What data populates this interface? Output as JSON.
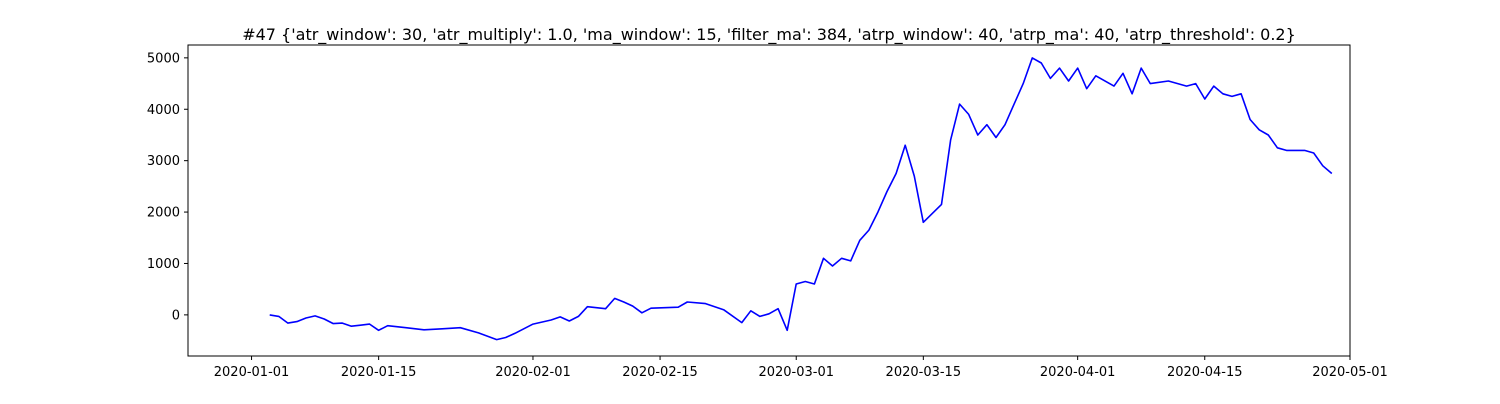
{
  "chart_data": {
    "type": "line",
    "title": "#47 {'atr_window': 30, 'atr_multiply': 1.0, 'ma_window': 15, 'filter_ma': 384, 'atrp_window': 40, 'atrp_ma': 40, 'atrp_threshold': 0.2}",
    "xlabel": "",
    "ylabel": "",
    "x_axis": {
      "type": "date",
      "range": [
        "2019-12-25",
        "2020-05-01"
      ],
      "ticks": [
        "2020-01-01",
        "2020-01-15",
        "2020-02-01",
        "2020-02-15",
        "2020-03-01",
        "2020-03-15",
        "2020-04-01",
        "2020-04-15",
        "2020-05-01"
      ]
    },
    "y_axis": {
      "range": [
        -800,
        5250
      ],
      "ticks": [
        0,
        1000,
        2000,
        3000,
        4000,
        5000
      ]
    },
    "grid": false,
    "legend": "none",
    "series": [
      {
        "color": "#0000ff",
        "points": [
          [
            "2020-01-03",
            0
          ],
          [
            "2020-01-04",
            -30
          ],
          [
            "2020-01-05",
            -160
          ],
          [
            "2020-01-06",
            -130
          ],
          [
            "2020-01-07",
            -60
          ],
          [
            "2020-01-08",
            -20
          ],
          [
            "2020-01-09",
            -80
          ],
          [
            "2020-01-10",
            -170
          ],
          [
            "2020-01-11",
            -160
          ],
          [
            "2020-01-12",
            -220
          ],
          [
            "2020-01-13",
            -200
          ],
          [
            "2020-01-14",
            -180
          ],
          [
            "2020-01-15",
            -300
          ],
          [
            "2020-01-16",
            -210
          ],
          [
            "2020-01-18",
            -250
          ],
          [
            "2020-01-20",
            -290
          ],
          [
            "2020-01-22",
            -270
          ],
          [
            "2020-01-24",
            -250
          ],
          [
            "2020-01-26",
            -350
          ],
          [
            "2020-01-28",
            -480
          ],
          [
            "2020-01-29",
            -440
          ],
          [
            "2020-01-30",
            -360
          ],
          [
            "2020-02-01",
            -180
          ],
          [
            "2020-02-03",
            -100
          ],
          [
            "2020-02-04",
            -40
          ],
          [
            "2020-02-05",
            -120
          ],
          [
            "2020-02-06",
            -30
          ],
          [
            "2020-02-07",
            160
          ],
          [
            "2020-02-09",
            120
          ],
          [
            "2020-02-10",
            320
          ],
          [
            "2020-02-11",
            250
          ],
          [
            "2020-02-12",
            170
          ],
          [
            "2020-02-13",
            40
          ],
          [
            "2020-02-14",
            130
          ],
          [
            "2020-02-17",
            150
          ],
          [
            "2020-02-18",
            250
          ],
          [
            "2020-02-20",
            220
          ],
          [
            "2020-02-22",
            100
          ],
          [
            "2020-02-24",
            -150
          ],
          [
            "2020-02-25",
            80
          ],
          [
            "2020-02-26",
            -30
          ],
          [
            "2020-02-27",
            20
          ],
          [
            "2020-02-28",
            120
          ],
          [
            "2020-02-29",
            -300
          ],
          [
            "2020-03-01",
            600
          ],
          [
            "2020-03-02",
            650
          ],
          [
            "2020-03-03",
            600
          ],
          [
            "2020-03-04",
            1100
          ],
          [
            "2020-03-05",
            950
          ],
          [
            "2020-03-06",
            1100
          ],
          [
            "2020-03-07",
            1050
          ],
          [
            "2020-03-08",
            1450
          ],
          [
            "2020-03-09",
            1650
          ],
          [
            "2020-03-10",
            2000
          ],
          [
            "2020-03-11",
            2400
          ],
          [
            "2020-03-12",
            2750
          ],
          [
            "2020-03-13",
            3300
          ],
          [
            "2020-03-14",
            2700
          ],
          [
            "2020-03-15",
            1800
          ],
          [
            "2020-03-17",
            2150
          ],
          [
            "2020-03-18",
            3400
          ],
          [
            "2020-03-19",
            4100
          ],
          [
            "2020-03-20",
            3900
          ],
          [
            "2020-03-21",
            3500
          ],
          [
            "2020-03-22",
            3700
          ],
          [
            "2020-03-23",
            3450
          ],
          [
            "2020-03-24",
            3700
          ],
          [
            "2020-03-25",
            4100
          ],
          [
            "2020-03-26",
            4500
          ],
          [
            "2020-03-27",
            5000
          ],
          [
            "2020-03-28",
            4900
          ],
          [
            "2020-03-29",
            4600
          ],
          [
            "2020-03-30",
            4800
          ],
          [
            "2020-03-31",
            4550
          ],
          [
            "2020-04-01",
            4800
          ],
          [
            "2020-04-02",
            4400
          ],
          [
            "2020-04-03",
            4650
          ],
          [
            "2020-04-05",
            4450
          ],
          [
            "2020-04-06",
            4700
          ],
          [
            "2020-04-07",
            4300
          ],
          [
            "2020-04-08",
            4800
          ],
          [
            "2020-04-09",
            4500
          ],
          [
            "2020-04-11",
            4550
          ],
          [
            "2020-04-13",
            4450
          ],
          [
            "2020-04-14",
            4500
          ],
          [
            "2020-04-15",
            4200
          ],
          [
            "2020-04-16",
            4450
          ],
          [
            "2020-04-17",
            4300
          ],
          [
            "2020-04-18",
            4250
          ],
          [
            "2020-04-19",
            4300
          ],
          [
            "2020-04-20",
            3800
          ],
          [
            "2020-04-21",
            3600
          ],
          [
            "2020-04-22",
            3500
          ],
          [
            "2020-04-23",
            3250
          ],
          [
            "2020-04-24",
            3200
          ],
          [
            "2020-04-25",
            3200
          ],
          [
            "2020-04-26",
            3200
          ],
          [
            "2020-04-27",
            3150
          ],
          [
            "2020-04-28",
            2900
          ],
          [
            "2020-04-29",
            2750
          ]
        ]
      }
    ]
  }
}
